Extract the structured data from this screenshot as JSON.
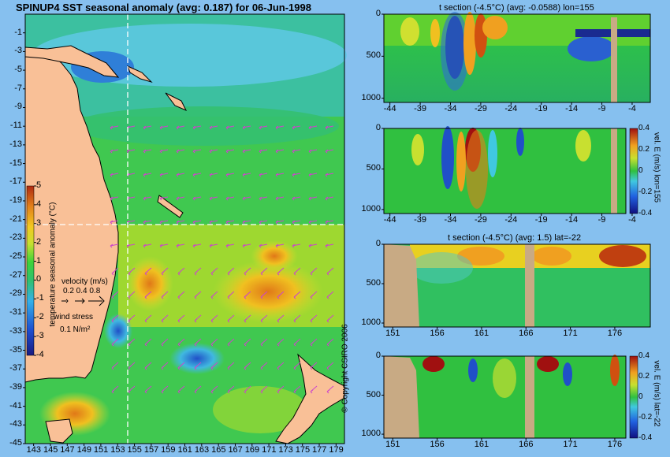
{
  "main_title": "SPINUP4 SST seasonal anomaly (avg: 0.187) for 06-Jun-1998",
  "copyright": "© Copyright CSIRO 2006",
  "colors": {
    "background": "#86c0ef",
    "land": "#f9c097",
    "section_land": "#c8aa84",
    "wind_arrow": "#cc44cc"
  },
  "chart_data": [
    {
      "type": "heatmap",
      "name": "sst-anomaly-map",
      "title": "SPINUP4 SST seasonal anomaly (avg: 0.187) for 06-Jun-1998",
      "x_ticks": [
        "143",
        "145",
        "147",
        "149",
        "151",
        "153",
        "155",
        "157",
        "159",
        "161",
        "163",
        "165",
        "167",
        "169",
        "171",
        "173",
        "175",
        "177",
        "179"
      ],
      "y_ticks": [
        "-1",
        "-3",
        "-5",
        "-7",
        "-9",
        "-11",
        "-13",
        "-15",
        "-17",
        "-19",
        "-21",
        "-23",
        "-25",
        "-27",
        "-29",
        "-31",
        "-33",
        "-35",
        "-37",
        "-39",
        "-41",
        "-43",
        "-45"
      ],
      "xlim": [
        142,
        180
      ],
      "ylim": [
        -45,
        1
      ],
      "section_lines": {
        "lon": 155,
        "lat": -22
      },
      "colorbar": {
        "label": "temperature seasonal anomaly (°C)",
        "ticks": [
          "5",
          "4",
          "3",
          "2",
          "1",
          "0",
          "-1",
          "-2",
          "-3",
          "-4"
        ],
        "range": [
          -4,
          5
        ]
      },
      "legend": {
        "velocity_label": "velocity (m/s)",
        "velocity_values": "0.2 0.4 0.8",
        "wind_label": "wind stress",
        "wind_value": "0.1 N/m²"
      }
    },
    {
      "type": "heatmap",
      "name": "temperature-section-lon155",
      "title": "t section (-4.5°C) (avg: -0.0588) lon=155",
      "x_ticks": [
        "-44",
        "-39",
        "-34",
        "-29",
        "-24",
        "-19",
        "-14",
        "-9",
        "-4"
      ],
      "y_ticks": [
        "0",
        "500",
        "1000"
      ],
      "xlim": [
        -45,
        -1
      ],
      "ylim": [
        1050,
        0
      ]
    },
    {
      "type": "heatmap",
      "name": "velocity-section-lon155",
      "title": "",
      "x_ticks": [
        "-44",
        "-39",
        "-34",
        "-29",
        "-24",
        "-19",
        "-14",
        "-9",
        "-4"
      ],
      "y_ticks": [
        "0",
        "500",
        "1000"
      ],
      "xlim": [
        -45,
        -1
      ],
      "ylim": [
        1050,
        0
      ],
      "colorbar": {
        "label": "vel. E (m/s) lon=155",
        "ticks": [
          "0.4",
          "0.2",
          "0",
          "-0.2",
          "-0.4"
        ],
        "range": [
          -0.4,
          0.4
        ]
      }
    },
    {
      "type": "heatmap",
      "name": "temperature-section-lat-22",
      "title": "t section (-4.5°C) (avg: 1.5) lat=-22",
      "x_ticks": [
        "151",
        "156",
        "161",
        "166",
        "171",
        "176"
      ],
      "y_ticks": [
        "0",
        "500",
        "1000"
      ],
      "xlim": [
        150,
        180
      ],
      "ylim": [
        1050,
        0
      ]
    },
    {
      "type": "heatmap",
      "name": "velocity-section-lat-22",
      "title": "",
      "x_ticks": [
        "151",
        "156",
        "161",
        "166",
        "171",
        "176"
      ],
      "y_ticks": [
        "0",
        "500",
        "1000"
      ],
      "xlim": [
        150,
        180
      ],
      "ylim": [
        1050,
        0
      ],
      "colorbar": {
        "label": "vel. E (m/s) lat=-22",
        "ticks": [
          "0.4",
          "0.2",
          "0",
          "-0.2",
          "-0.4"
        ],
        "range": [
          -0.4,
          0.4
        ]
      }
    }
  ]
}
